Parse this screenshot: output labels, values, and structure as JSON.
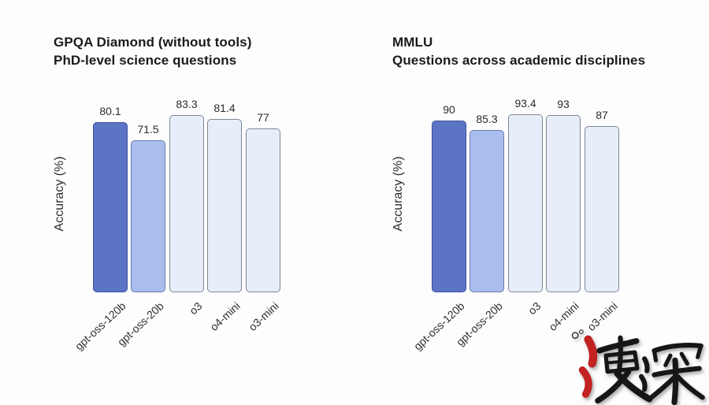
{
  "page": {
    "background": "#fdfdfd"
  },
  "chart_data": [
    {
      "type": "bar",
      "title": "GPQA Diamond (without tools)",
      "subtitle": "PhD-level science questions",
      "ylabel": "Accuracy (%)",
      "categories": [
        "gpt-oss-120b",
        "gpt-oss-20b",
        "o3",
        "o4-mini",
        "o3-mini"
      ],
      "values": [
        80.1,
        71.5,
        83.3,
        81.4,
        77
      ],
      "labels": [
        "80.1",
        "71.5",
        "83.3",
        "81.4",
        "77"
      ],
      "ylim": [
        0,
        100
      ],
      "grid": false,
      "axis_lines": false,
      "bar_fills": [
        "#5B74C4",
        "#AABDEF",
        "#E7EEFA",
        "#E7EEFA",
        "#E7EEFA"
      ],
      "bar_borders": [
        "#3D53A0",
        "#6E7DAC",
        "#7E8795",
        "#7E8795",
        "#7E8795"
      ]
    },
    {
      "type": "bar",
      "title": "MMLU",
      "subtitle": "Questions across academic disciplines",
      "ylabel": "Accuracy (%)",
      "categories": [
        "gpt-oss-120b",
        "gpt-oss-20b",
        "o3",
        "o4-mini",
        "o3-mini"
      ],
      "values": [
        90,
        85.3,
        93.4,
        93,
        87
      ],
      "labels": [
        "90",
        "85.3",
        "93.4",
        "93",
        "87"
      ],
      "ylim": [
        0,
        100
      ],
      "grid": false,
      "axis_lines": false,
      "bar_fills": [
        "#5B74C4",
        "#AABDEF",
        "#E7EEFA",
        "#E7EEFA",
        "#E7EEFA"
      ],
      "bar_borders": [
        "#3D53A0",
        "#6E7DAC",
        "#7E8795",
        "#7E8795",
        "#7E8795"
      ]
    }
  ],
  "watermark": {
    "text": "速深",
    "ink_color": "#161616",
    "accent_color": "#c32222"
  }
}
